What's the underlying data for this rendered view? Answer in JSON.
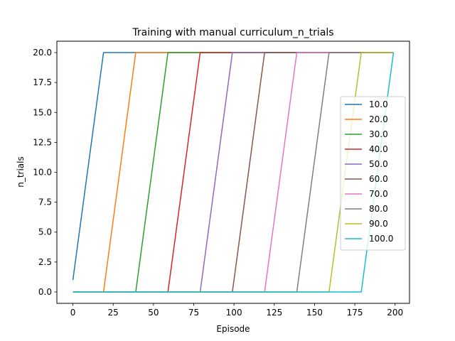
{
  "chart_data": {
    "type": "line",
    "title": "Training with manual curriculum_n_trials",
    "xlabel": "Episode",
    "ylabel": "n_trials",
    "xlim": [
      -9.95,
      208.95
    ],
    "ylim": [
      -0.95,
      20.95
    ],
    "xticks": [
      0,
      25,
      50,
      75,
      100,
      125,
      150,
      175,
      200
    ],
    "yticks": [
      0.0,
      2.5,
      5.0,
      7.5,
      10.0,
      12.5,
      15.0,
      17.5,
      20.0
    ],
    "xtick_labels": [
      "0",
      "25",
      "50",
      "75",
      "100",
      "125",
      "150",
      "175",
      "200"
    ],
    "ytick_labels": [
      "0.0",
      "2.5",
      "5.0",
      "7.5",
      "10.0",
      "12.5",
      "15.0",
      "17.5",
      "20.0"
    ],
    "grid": false,
    "legend_position": "center-right",
    "series": [
      {
        "name": "10.0",
        "color": "#1f77b4",
        "x": [
          0,
          19,
          199
        ],
        "y": [
          1,
          20,
          20
        ]
      },
      {
        "name": "20.0",
        "color": "#ff7f0e",
        "x": [
          0,
          19,
          39,
          199
        ],
        "y": [
          0,
          0,
          20,
          20
        ]
      },
      {
        "name": "30.0",
        "color": "#2ca02c",
        "x": [
          0,
          39,
          59,
          199
        ],
        "y": [
          0,
          0,
          20,
          20
        ]
      },
      {
        "name": "40.0",
        "color": "#d62728",
        "x": [
          0,
          59,
          79,
          199
        ],
        "y": [
          0,
          0,
          20,
          20
        ]
      },
      {
        "name": "50.0",
        "color": "#9467bd",
        "x": [
          0,
          79,
          99,
          199
        ],
        "y": [
          0,
          0,
          20,
          20
        ]
      },
      {
        "name": "60.0",
        "color": "#8c564b",
        "x": [
          0,
          99,
          119,
          199
        ],
        "y": [
          0,
          0,
          20,
          20
        ]
      },
      {
        "name": "70.0",
        "color": "#e377c2",
        "x": [
          0,
          119,
          139,
          199
        ],
        "y": [
          0,
          0,
          20,
          20
        ]
      },
      {
        "name": "80.0",
        "color": "#7f7f7f",
        "x": [
          0,
          139,
          159,
          199
        ],
        "y": [
          0,
          0,
          20,
          20
        ]
      },
      {
        "name": "90.0",
        "color": "#bcbd22",
        "x": [
          0,
          159,
          179,
          199
        ],
        "y": [
          0,
          0,
          20,
          20
        ]
      },
      {
        "name": "100.0",
        "color": "#17becf",
        "x": [
          0,
          179,
          199
        ],
        "y": [
          0,
          0,
          20
        ]
      }
    ]
  }
}
